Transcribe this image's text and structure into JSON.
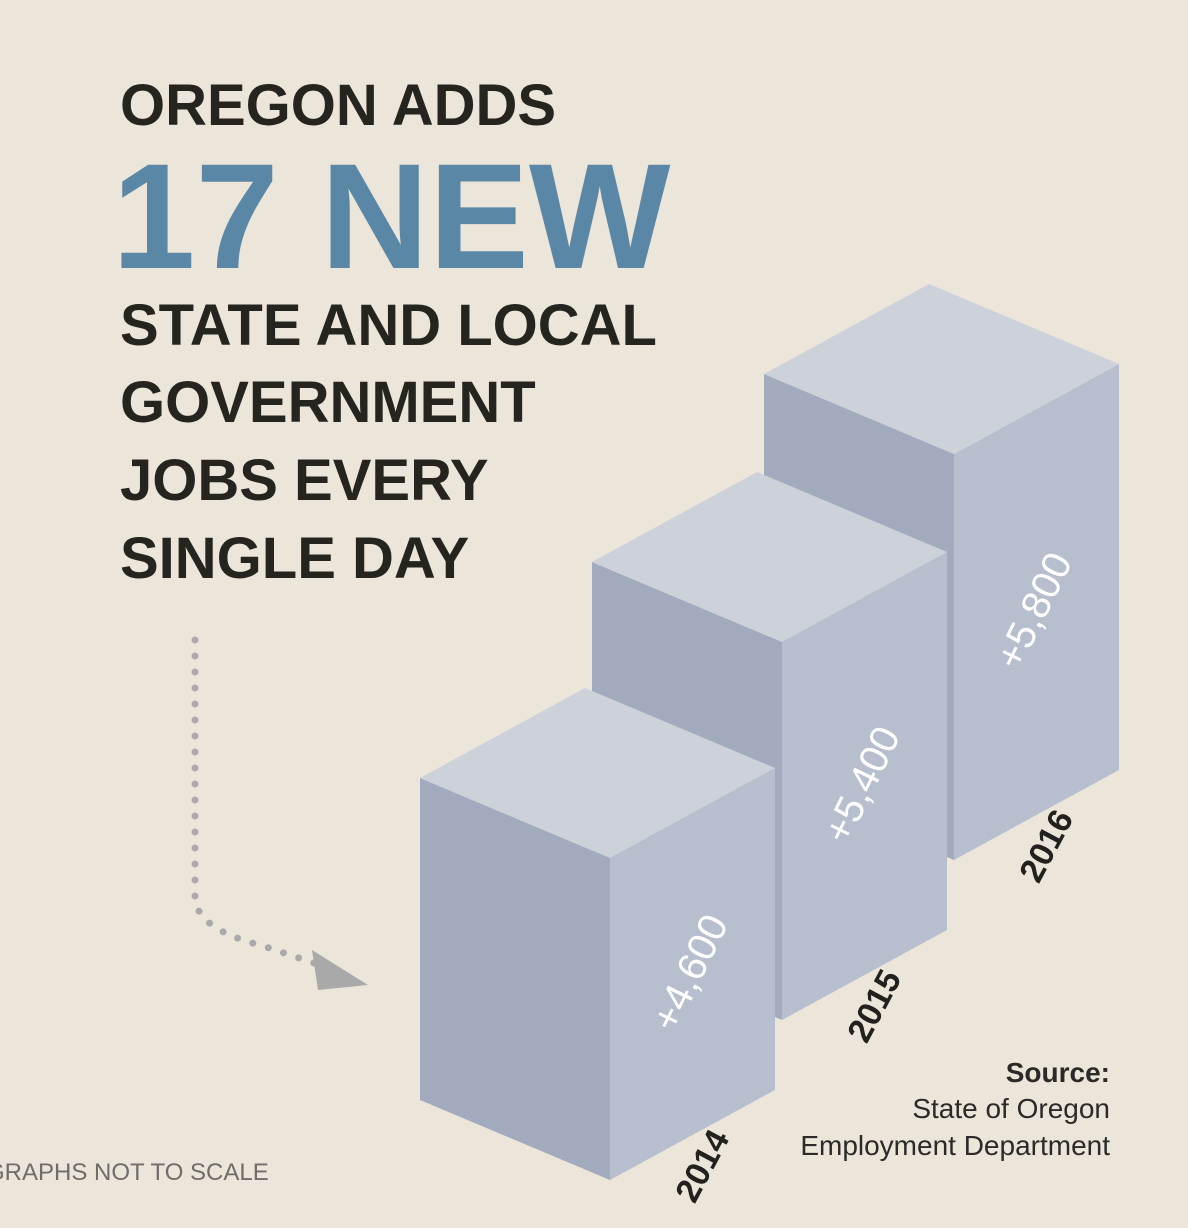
{
  "chart_data": {
    "type": "bar",
    "title_lines": [
      "OREGON ADDS",
      "17 NEW",
      "STATE AND LOCAL",
      "GOVERNMENT",
      "JOBS EVERY",
      "SINGLE DAY"
    ],
    "categories": [
      "2014",
      "2015",
      "2016"
    ],
    "values": [
      4600,
      5400,
      5800
    ],
    "value_labels": [
      "+4,600",
      "+5,400",
      "+5,800"
    ],
    "color": "#b7bfcf",
    "source": [
      "Source:",
      "State of Oregon",
      "Employment Department"
    ],
    "footnote": "GRAPHS NOT TO SCALE"
  }
}
